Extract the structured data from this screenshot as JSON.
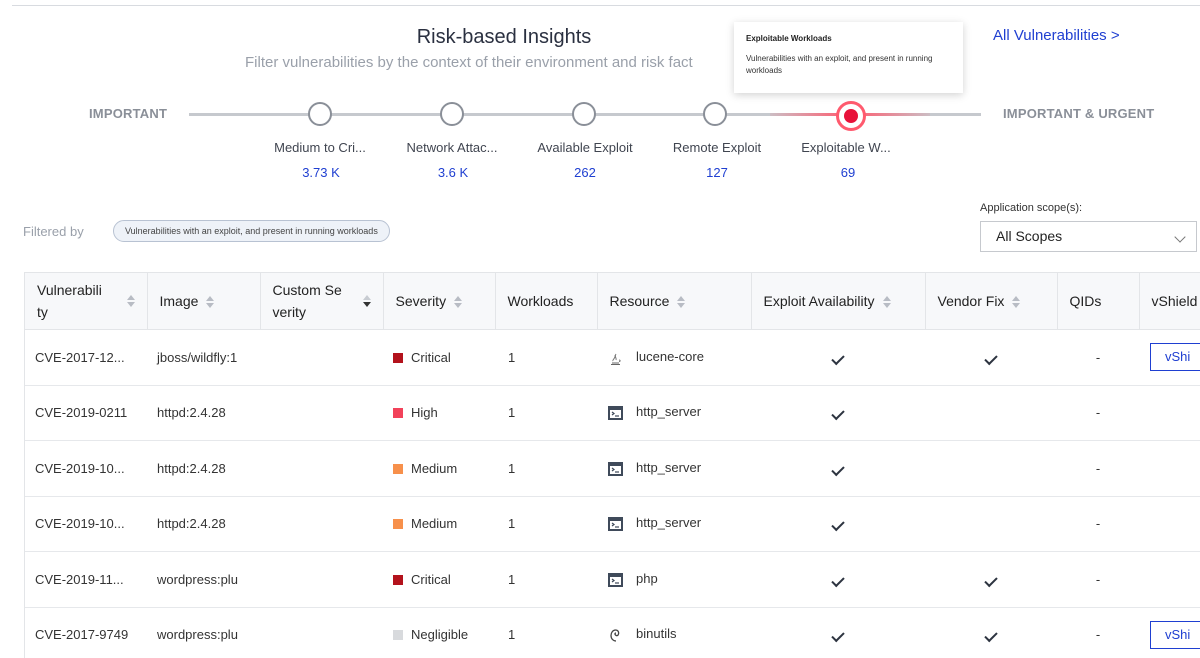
{
  "header": {
    "title": "Risk-based Insights",
    "subtitle": "Filter vulnerabilities by the context of their environment and risk fact",
    "all_link": "All Vulnerabilities >"
  },
  "tooltip": {
    "title": "Exploitable Workloads",
    "body": "Vulnerabilities with an exploit, and present in running workloads"
  },
  "slider": {
    "left_label": "IMPORTANT",
    "right_label": "IMPORTANT & URGENT",
    "active_index": 4,
    "stops": [
      {
        "label": "Medium to Cri...",
        "count": "3.73 K"
      },
      {
        "label": "Network Attac...",
        "count": "3.6 K"
      },
      {
        "label": "Available Exploit",
        "count": "262"
      },
      {
        "label": "Remote Exploit",
        "count": "127"
      },
      {
        "label": "Exploitable W...",
        "count": "69"
      }
    ]
  },
  "filter": {
    "label": "Filtered by",
    "chip": "Vulnerabilities with an exploit, and present in running workloads"
  },
  "scope": {
    "label": "Application scope(s):",
    "value": "All Scopes"
  },
  "table": {
    "columns": [
      {
        "line1": "Vulnerabili",
        "line2": "ty"
      },
      {
        "line1": "Image",
        "line2": ""
      },
      {
        "line1": "Custom Se",
        "line2": "verity"
      },
      {
        "line1": "Severity",
        "line2": ""
      },
      {
        "line1": "Workloads",
        "line2": ""
      },
      {
        "line1": "Resource",
        "line2": ""
      },
      {
        "line1": "Exploit Availability",
        "line2": ""
      },
      {
        "line1": "Vendor Fix",
        "line2": ""
      },
      {
        "line1": "QIDs",
        "line2": ""
      },
      {
        "line1": "vShield",
        "line2": ""
      }
    ],
    "severity_colors": {
      "Critical": "#b3121c",
      "High": "#f2425a",
      "Medium": "#f7904b",
      "Negligible": "#d8dadd"
    },
    "rows": [
      {
        "cve": "CVE-2017-12...",
        "image": "jboss/wildfly:1",
        "custom": "",
        "severity": "Critical",
        "workloads": "1",
        "resource_icon": "java-icon",
        "resource": "lucene-core",
        "exploit": true,
        "vendor_fix": true,
        "qids": "-",
        "vshield": "vShi"
      },
      {
        "cve": "CVE-2019-0211",
        "image": "httpd:2.4.28",
        "custom": "",
        "severity": "High",
        "workloads": "1",
        "resource_icon": "terminal-icon",
        "resource": "http_server",
        "exploit": true,
        "vendor_fix": false,
        "qids": "-",
        "vshield": ""
      },
      {
        "cve": "CVE-2019-10...",
        "image": "httpd:2.4.28",
        "custom": "",
        "severity": "Medium",
        "workloads": "1",
        "resource_icon": "terminal-icon",
        "resource": "http_server",
        "exploit": true,
        "vendor_fix": false,
        "qids": "-",
        "vshield": ""
      },
      {
        "cve": "CVE-2019-10...",
        "image": "httpd:2.4.28",
        "custom": "",
        "severity": "Medium",
        "workloads": "1",
        "resource_icon": "terminal-icon",
        "resource": "http_server",
        "exploit": true,
        "vendor_fix": false,
        "qids": "-",
        "vshield": ""
      },
      {
        "cve": "CVE-2019-11...",
        "image": "wordpress:plu",
        "custom": "",
        "severity": "Critical",
        "workloads": "1",
        "resource_icon": "terminal-icon",
        "resource": "php",
        "exploit": true,
        "vendor_fix": true,
        "qids": "-",
        "vshield": ""
      },
      {
        "cve": "CVE-2017-9749",
        "image": "wordpress:plu",
        "custom": "",
        "severity": "Negligible",
        "workloads": "1",
        "resource_icon": "debian-icon",
        "resource": "binutils",
        "exploit": true,
        "vendor_fix": true,
        "qids": "-",
        "vshield": "vShi"
      }
    ]
  }
}
